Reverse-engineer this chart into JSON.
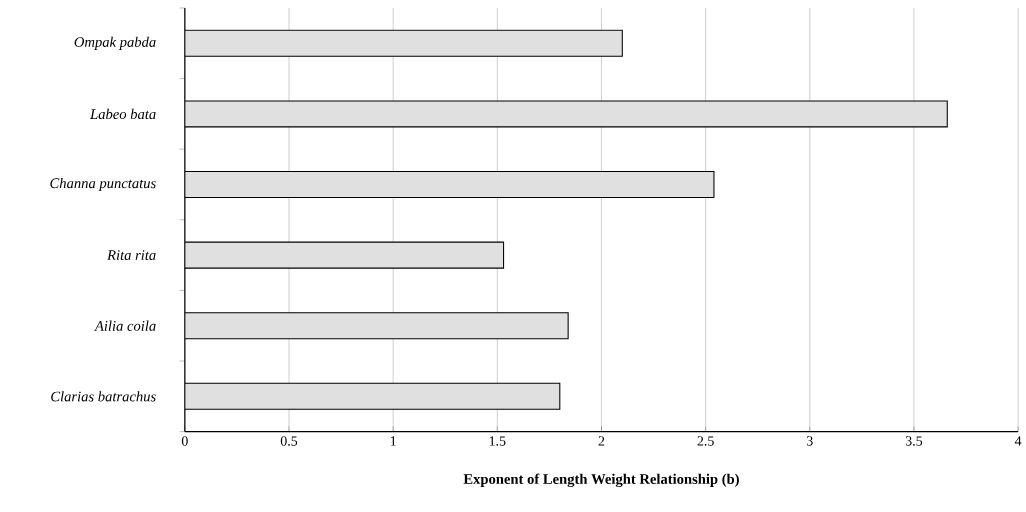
{
  "chart_data": {
    "type": "bar",
    "orientation": "horizontal",
    "xlabel": "Exponent of Length Weight Relationship (b)",
    "categories": [
      "Ompak pabda",
      "Labeo bata",
      "Channa punctatus",
      "Rita rita",
      "Ailia coila",
      "Clarias batrachus"
    ],
    "values": [
      2.1,
      3.66,
      2.54,
      1.53,
      1.84,
      1.8
    ],
    "color": "#e0e0e0",
    "xlim": [
      0,
      4
    ],
    "xticks": [
      0,
      0.5,
      1,
      1.5,
      2,
      2.5,
      3,
      3.5,
      4
    ],
    "grid": "x"
  }
}
